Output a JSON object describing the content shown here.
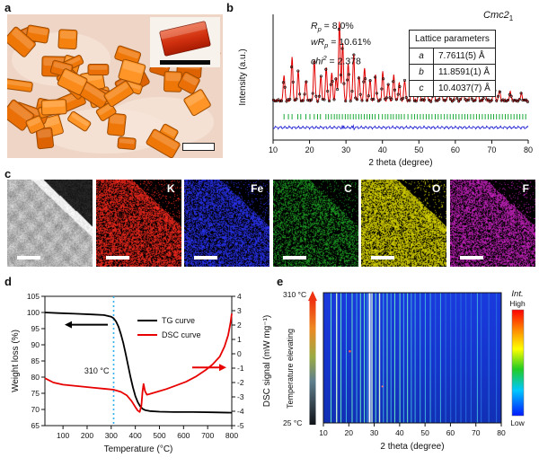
{
  "panels": {
    "a": {
      "label": "a"
    },
    "b": {
      "label": "b",
      "space_group": {
        "base": "Cmc2",
        "sub": "1"
      },
      "stats": [
        {
          "sym": "R",
          "sub": "p",
          "sup": "",
          "rest": " = 8.0%"
        },
        {
          "sym": "wR",
          "sub": "p",
          "sup": "",
          "rest": " = 10.61%"
        },
        {
          "sym": "chi",
          "sub": "",
          "sup": "2",
          "rest": " = 2.378"
        }
      ],
      "table": {
        "title": "Lattice parameters",
        "rows": [
          {
            "param": "a",
            "value": "7.7611(5) Å"
          },
          {
            "param": "b",
            "value": "11.8591(1) Å"
          },
          {
            "param": "c",
            "value": "10.4037(7) Å"
          }
        ]
      }
    },
    "c": {
      "label": "c",
      "maps": [
        {
          "label": "K",
          "color": "#ff2a1e",
          "density": 0.85
        },
        {
          "label": "Fe",
          "color": "#2b35ff",
          "density": 0.8
        },
        {
          "label": "C",
          "color": "#1fa926",
          "density": 0.55
        },
        {
          "label": "O",
          "color": "#e8e300",
          "density": 0.97
        },
        {
          "label": "F",
          "color": "#d024c8",
          "density": 0.8
        }
      ]
    },
    "d": {
      "label": "d"
    },
    "e": {
      "label": "e"
    }
  },
  "chart_data": [
    {
      "id": "xrd_refinement",
      "type": "line",
      "xlabel": "2 theta (degree)",
      "ylabel": "Intensity (a.u.)",
      "xlim": [
        10,
        80
      ],
      "xticks": [
        10,
        20,
        30,
        40,
        50,
        60,
        70,
        80
      ],
      "series": [
        {
          "name": "observed",
          "style": "black open circles"
        },
        {
          "name": "calculated",
          "style": "red line",
          "color": "#e00000"
        },
        {
          "name": "Bragg positions",
          "style": "green ticks",
          "color": "#00a020"
        },
        {
          "name": "difference",
          "style": "blue line",
          "color": "#1515d0"
        }
      ],
      "peaks": [
        [
          13.0,
          0.32
        ],
        [
          15.2,
          0.55
        ],
        [
          16.9,
          0.38
        ],
        [
          19.0,
          0.26
        ],
        [
          21.3,
          0.5
        ],
        [
          23.1,
          0.3
        ],
        [
          24.6,
          0.42
        ],
        [
          26.1,
          0.36
        ],
        [
          27.3,
          0.3
        ],
        [
          28.2,
          1.0
        ],
        [
          29.1,
          0.72
        ],
        [
          30.6,
          0.48
        ],
        [
          32.1,
          0.58
        ],
        [
          33.6,
          0.3
        ],
        [
          35.1,
          0.42
        ],
        [
          36.6,
          0.26
        ],
        [
          38.1,
          0.32
        ],
        [
          40.1,
          0.36
        ],
        [
          41.6,
          0.22
        ],
        [
          43.1,
          0.32
        ],
        [
          44.6,
          0.22
        ],
        [
          46.1,
          0.26
        ],
        [
          48.1,
          0.3
        ],
        [
          50.1,
          0.22
        ],
        [
          52.1,
          0.26
        ],
        [
          54.1,
          0.16
        ],
        [
          56.1,
          0.22
        ],
        [
          58.1,
          0.16
        ],
        [
          60.1,
          0.16
        ],
        [
          62.1,
          0.16
        ],
        [
          64.1,
          0.13
        ],
        [
          66.1,
          0.16
        ],
        [
          68.1,
          0.11
        ],
        [
          70.6,
          0.26
        ],
        [
          72.1,
          0.13
        ],
        [
          75.1,
          0.11
        ],
        [
          78.1,
          0.09
        ]
      ],
      "bragg_ticks": [
        13.0,
        14.2,
        15.2,
        16.8,
        17.6,
        19.0,
        20.1,
        21.3,
        22.2,
        23.0,
        24.5,
        25.2,
        26.0,
        26.8,
        27.5,
        28.2,
        29.0,
        29.8,
        30.5,
        31.2,
        32.0,
        32.7,
        33.5,
        34.2,
        35.0,
        35.8,
        36.5,
        37.2,
        38.0,
        39.0,
        40.0,
        40.8,
        41.5,
        42.3,
        43.0,
        43.8,
        44.5,
        45.2,
        46.0,
        47.0,
        48.0,
        48.8,
        49.6,
        50.4,
        51.2,
        52.0,
        52.8,
        53.6,
        54.5,
        55.3,
        56.1,
        57.0,
        57.8,
        58.6,
        59.4,
        60.2,
        61.0,
        61.8,
        62.6,
        63.4,
        64.2,
        65.0,
        65.8,
        66.6,
        67.4,
        68.2,
        69.0,
        69.8,
        70.5,
        71.3,
        72.1,
        72.9,
        73.7,
        74.5,
        75.3,
        76.1,
        76.9,
        77.7,
        78.5,
        79.3
      ]
    },
    {
      "id": "tg_dsc",
      "type": "line",
      "xlabel": "Temperature (°C)",
      "ylabel_left": "Weight loss (%)",
      "ylabel_right": "DSC signal (mW mg⁻¹)",
      "xlim": [
        25,
        800
      ],
      "xticks": [
        100,
        200,
        300,
        400,
        500,
        600,
        700,
        800
      ],
      "ylim_left": [
        65,
        105
      ],
      "yticks_left": [
        65,
        70,
        75,
        80,
        85,
        90,
        95,
        100,
        105
      ],
      "ylim_right": [
        -5,
        4
      ],
      "yticks_right": [
        -5,
        -4,
        -3,
        -2,
        -1,
        0,
        1,
        2,
        3,
        4
      ],
      "annotation": {
        "text": "310 °C",
        "x": 310,
        "line_color": "#30b0f0"
      },
      "series": [
        {
          "name": "TG curve",
          "color": "#000000",
          "axis": "left",
          "points": [
            [
              25,
              100
            ],
            [
              80,
              99.8
            ],
            [
              150,
              99.6
            ],
            [
              220,
              99.4
            ],
            [
              270,
              99.2
            ],
            [
              300,
              98.7
            ],
            [
              310,
              98.2
            ],
            [
              320,
              97.2
            ],
            [
              330,
              95.6
            ],
            [
              340,
              93.4
            ],
            [
              350,
              90.6
            ],
            [
              360,
              87.2
            ],
            [
              370,
              83.6
            ],
            [
              380,
              80.0
            ],
            [
              390,
              76.8
            ],
            [
              400,
              74.2
            ],
            [
              410,
              72.3
            ],
            [
              420,
              71.0
            ],
            [
              430,
              70.2
            ],
            [
              440,
              69.8
            ],
            [
              460,
              69.5
            ],
            [
              500,
              69.3
            ],
            [
              560,
              69.2
            ],
            [
              640,
              69.2
            ],
            [
              720,
              69.1
            ],
            [
              800,
              69.0
            ]
          ]
        },
        {
          "name": "DSC curve",
          "color": "#e80000",
          "axis": "right",
          "points": [
            [
              25,
              -1.7
            ],
            [
              60,
              -2.0
            ],
            [
              100,
              -2.15
            ],
            [
              160,
              -2.25
            ],
            [
              220,
              -2.35
            ],
            [
              280,
              -2.45
            ],
            [
              310,
              -2.5
            ],
            [
              340,
              -2.65
            ],
            [
              365,
              -2.9
            ],
            [
              385,
              -3.3
            ],
            [
              400,
              -3.7
            ],
            [
              410,
              -3.95
            ],
            [
              418,
              -4.05
            ],
            [
              425,
              -3.6
            ],
            [
              430,
              -2.6
            ],
            [
              434,
              -2.1
            ],
            [
              440,
              -2.6
            ],
            [
              448,
              -2.85
            ],
            [
              460,
              -2.8
            ],
            [
              490,
              -2.65
            ],
            [
              530,
              -2.45
            ],
            [
              570,
              -2.2
            ],
            [
              610,
              -1.95
            ],
            [
              650,
              -1.6
            ],
            [
              690,
              -1.15
            ],
            [
              720,
              -0.75
            ],
            [
              750,
              -0.2
            ],
            [
              770,
              0.5
            ],
            [
              785,
              1.3
            ],
            [
              795,
              2.2
            ],
            [
              800,
              2.8
            ]
          ]
        }
      ]
    },
    {
      "id": "variable_temperature_xrd",
      "type": "heatmap",
      "xlabel": "2 theta (degree)",
      "ylabel": "Temperature elevating",
      "xlim": [
        10,
        80
      ],
      "xticks": [
        10,
        20,
        30,
        40,
        50,
        60,
        70,
        80
      ],
      "temp_low_label": "25 °C",
      "temp_high_label": "310 °C",
      "colorbar": {
        "title": "Int.",
        "high": "High",
        "low": "Low"
      },
      "peak_lines_2theta": [
        [
          13.0,
          0.32
        ],
        [
          15.2,
          0.55
        ],
        [
          16.9,
          0.38
        ],
        [
          19.0,
          0.26
        ],
        [
          21.3,
          0.5
        ],
        [
          23.1,
          0.3
        ],
        [
          24.6,
          0.42
        ],
        [
          26.1,
          0.36
        ],
        [
          27.3,
          0.3
        ],
        [
          28.2,
          1.0
        ],
        [
          29.1,
          0.72
        ],
        [
          30.6,
          0.48
        ],
        [
          32.1,
          0.58
        ],
        [
          33.6,
          0.3
        ],
        [
          35.1,
          0.42
        ],
        [
          36.6,
          0.26
        ],
        [
          38.1,
          0.32
        ],
        [
          40.1,
          0.36
        ],
        [
          41.6,
          0.22
        ],
        [
          43.1,
          0.32
        ],
        [
          44.6,
          0.22
        ],
        [
          46.1,
          0.26
        ],
        [
          48.1,
          0.3
        ],
        [
          50.1,
          0.22
        ],
        [
          52.1,
          0.26
        ],
        [
          54.1,
          0.16
        ],
        [
          56.1,
          0.22
        ],
        [
          58.1,
          0.16
        ],
        [
          60.1,
          0.16
        ],
        [
          62.1,
          0.16
        ],
        [
          64.1,
          0.13
        ],
        [
          66.1,
          0.16
        ],
        [
          68.1,
          0.11
        ],
        [
          70.6,
          0.26
        ],
        [
          72.1,
          0.13
        ],
        [
          75.1,
          0.11
        ],
        [
          78.1,
          0.09
        ]
      ]
    }
  ]
}
